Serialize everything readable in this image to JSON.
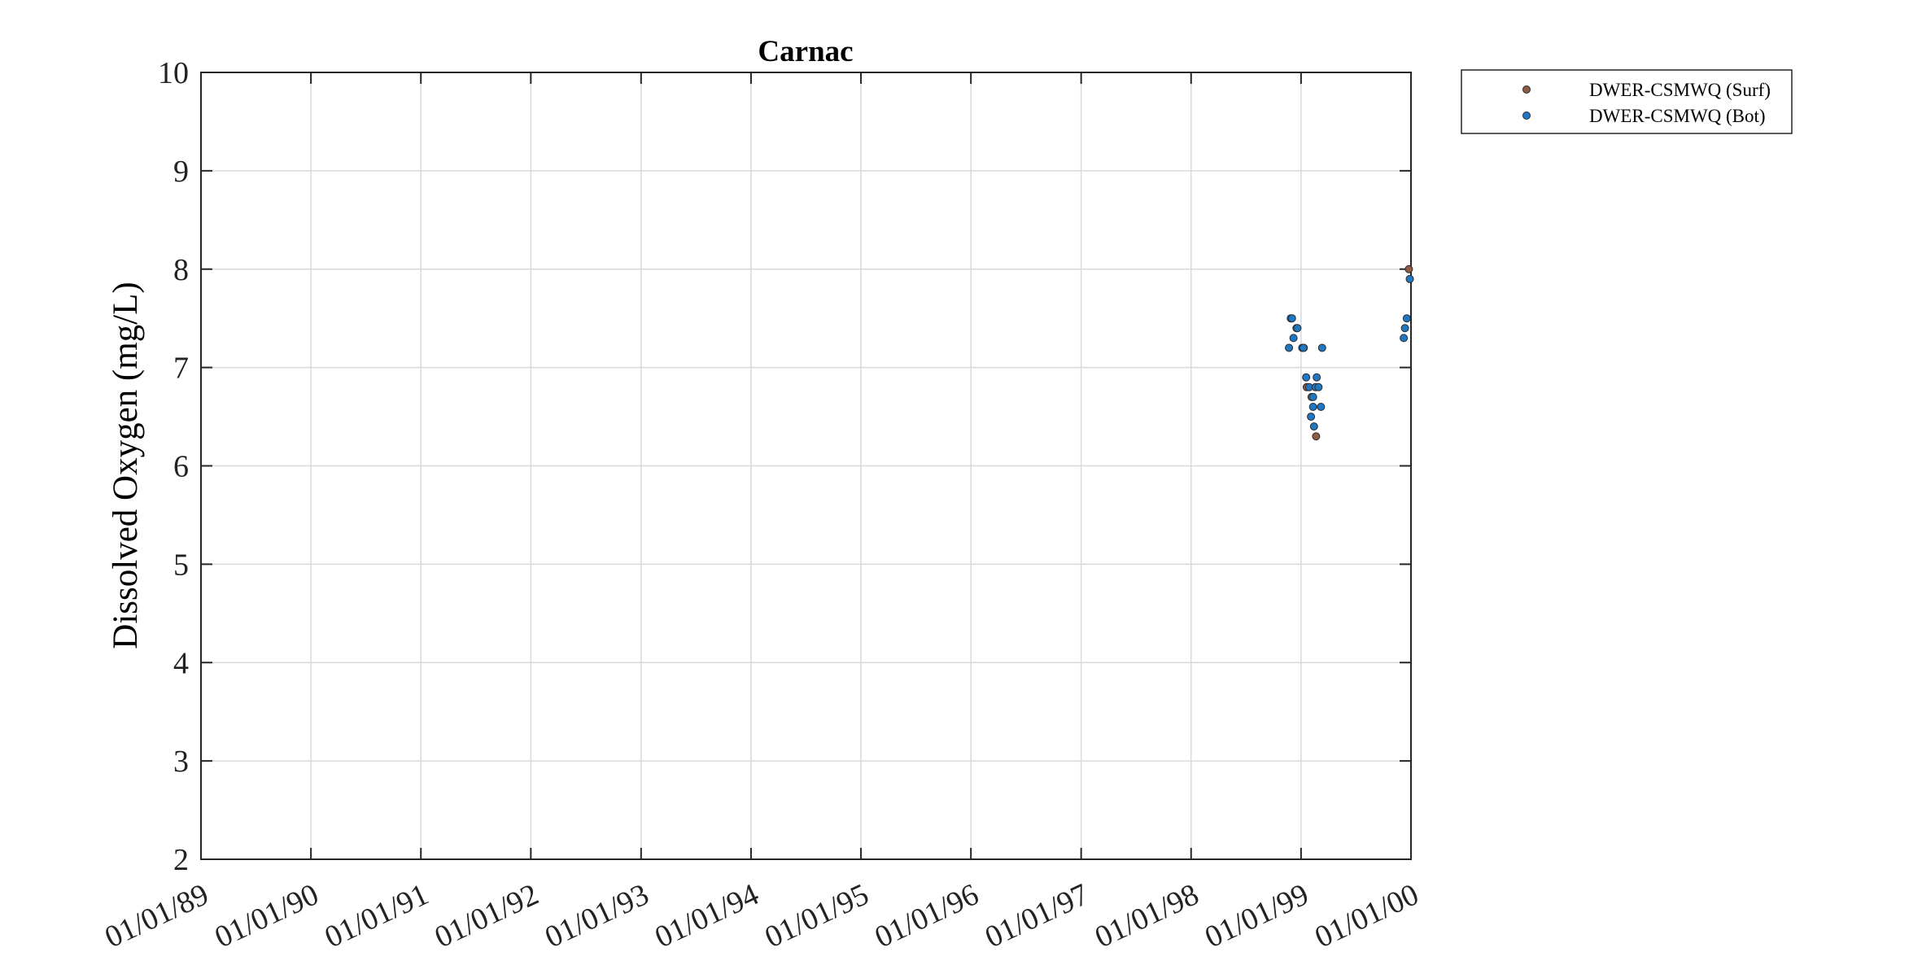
{
  "chart_data": {
    "type": "scatter",
    "title": "Carnac",
    "xlabel": "",
    "ylabel": "Dissolved Oxygen (mg/L)",
    "ylim": [
      2,
      10
    ],
    "yticks": [
      2,
      3,
      4,
      5,
      6,
      7,
      8,
      9,
      10
    ],
    "xlim": [
      "1989-01-01",
      "2000-01-01"
    ],
    "xtick_labels": [
      "01/01/89",
      "01/01/90",
      "01/01/91",
      "01/01/92",
      "01/01/93",
      "01/01/94",
      "01/01/95",
      "01/01/96",
      "01/01/97",
      "01/01/98",
      "01/01/99",
      "01/01/00"
    ],
    "grid": true,
    "legend_position": "outside-top-right",
    "series": [
      {
        "name": "DWER-CSMWQ (Surf)",
        "color": "#8c5a45",
        "points": [
          {
            "x": "1999-01-10",
            "y": 7.2
          },
          {
            "x": "1999-01-20",
            "y": 6.8
          },
          {
            "x": "1999-02-05",
            "y": 6.7
          },
          {
            "x": "1999-02-20",
            "y": 6.3
          },
          {
            "x": "1999-12-25",
            "y": 8.0
          }
        ]
      },
      {
        "name": "DWER-CSMWQ (Bot)",
        "color": "#1f77c4",
        "points": [
          {
            "x": "1998-11-28",
            "y": 7.5
          },
          {
            "x": "1998-12-02",
            "y": 7.5
          },
          {
            "x": "1998-11-22",
            "y": 7.2
          },
          {
            "x": "1998-12-07",
            "y": 7.3
          },
          {
            "x": "1998-12-17",
            "y": 7.4
          },
          {
            "x": "1998-12-20",
            "y": 7.4
          },
          {
            "x": "1999-01-05",
            "y": 7.2
          },
          {
            "x": "1999-01-09",
            "y": 7.2
          },
          {
            "x": "1999-01-18",
            "y": 6.9
          },
          {
            "x": "1999-01-28",
            "y": 6.8
          },
          {
            "x": "1999-02-10",
            "y": 6.7
          },
          {
            "x": "1999-02-03",
            "y": 6.5
          },
          {
            "x": "1999-02-10",
            "y": 6.6
          },
          {
            "x": "1999-02-13",
            "y": 6.4
          },
          {
            "x": "1999-02-18",
            "y": 6.8
          },
          {
            "x": "1999-02-22",
            "y": 6.9
          },
          {
            "x": "1999-02-28",
            "y": 6.8
          },
          {
            "x": "1999-03-08",
            "y": 6.6
          },
          {
            "x": "1999-03-12",
            "y": 7.2
          },
          {
            "x": "1999-12-08",
            "y": 7.3
          },
          {
            "x": "1999-12-12",
            "y": 7.4
          },
          {
            "x": "1999-12-18",
            "y": 7.5
          },
          {
            "x": "1999-12-28",
            "y": 7.9
          }
        ]
      }
    ]
  }
}
